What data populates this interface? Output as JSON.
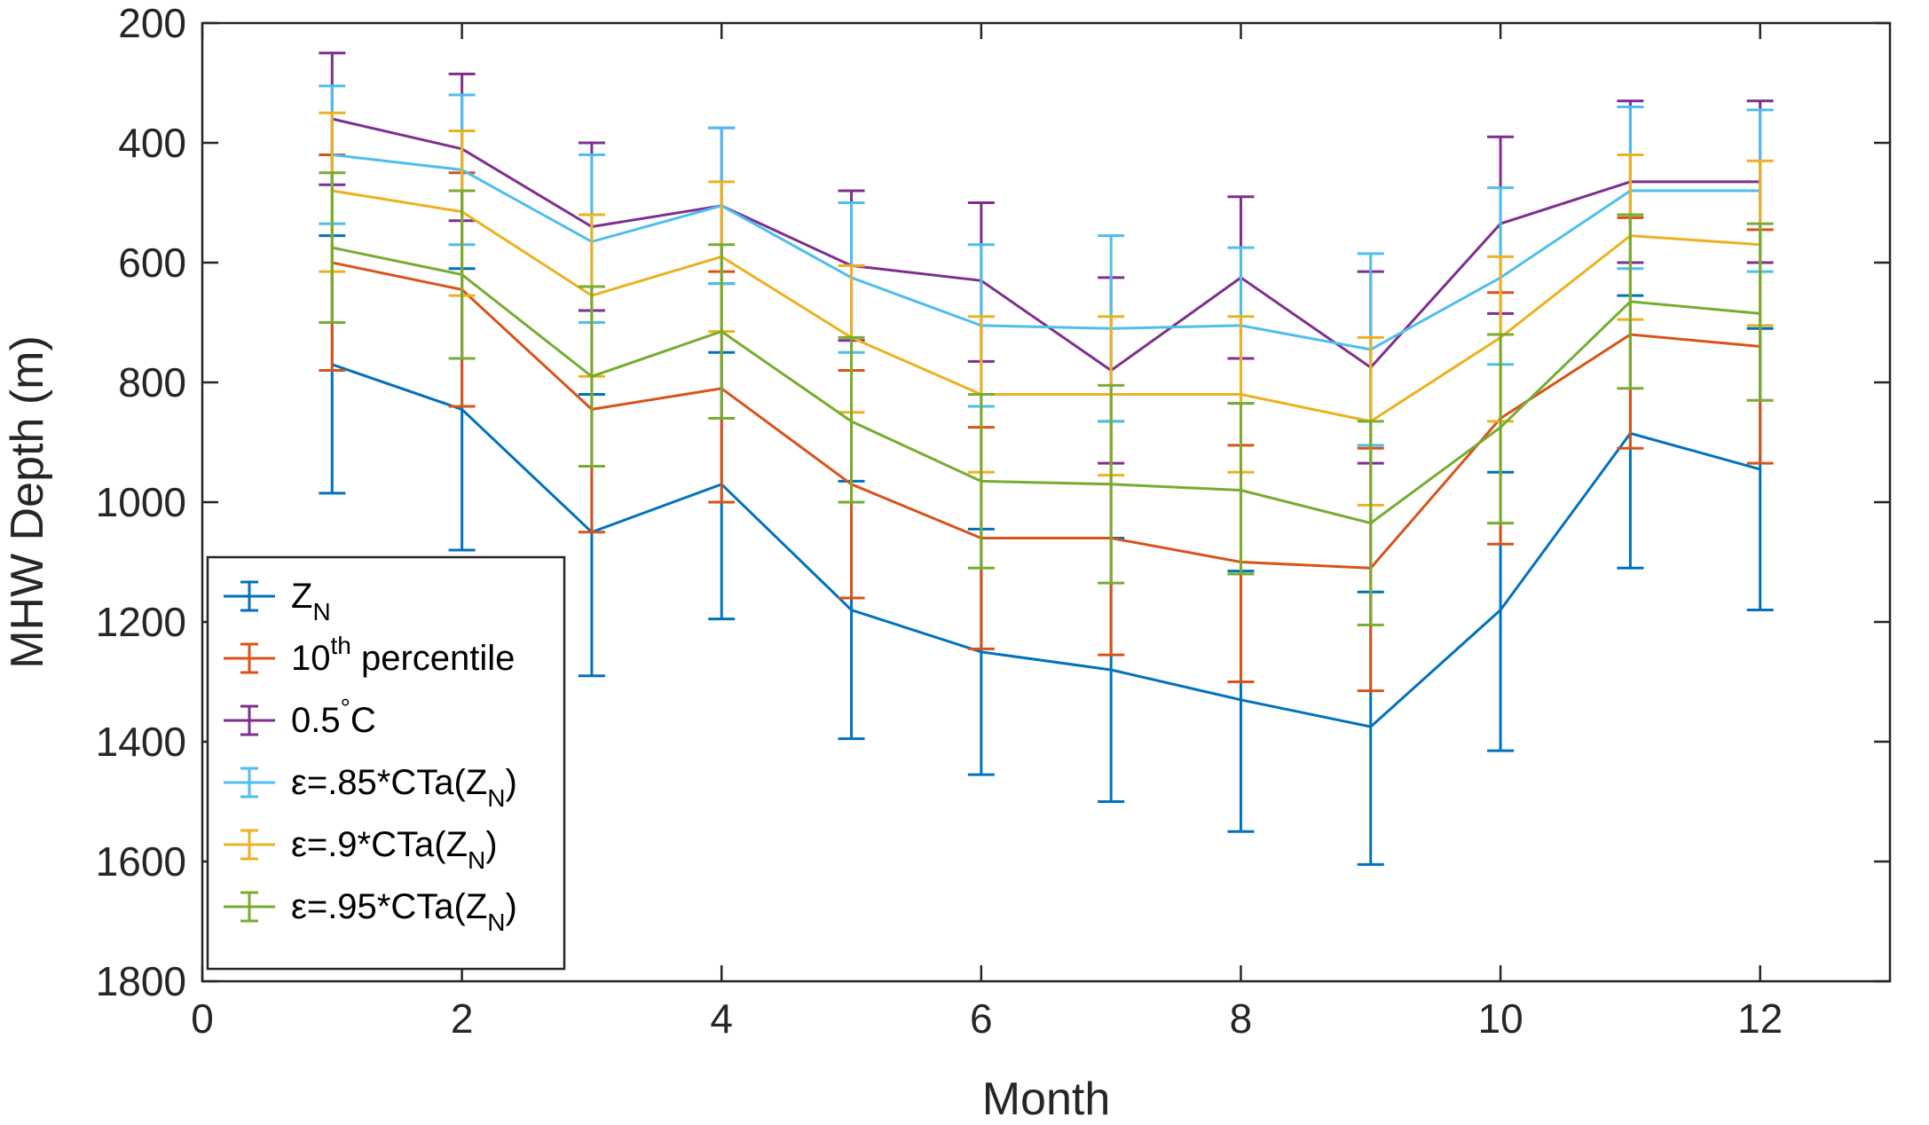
{
  "chart_data": {
    "type": "line",
    "title": "",
    "xlabel": "Month",
    "ylabel": "MHW Depth (m)",
    "xlim": [
      0,
      13
    ],
    "ylim": [
      200,
      1800
    ],
    "y_reversed": true,
    "x_ticks": [
      0,
      2,
      4,
      6,
      8,
      10,
      12
    ],
    "y_ticks": [
      200,
      400,
      600,
      800,
      1000,
      1200,
      1400,
      1600,
      1800
    ],
    "x_tick_labels": [
      "0",
      "2",
      "4",
      "6",
      "8",
      "10",
      "12"
    ],
    "y_tick_labels": [
      "200",
      "400",
      "600",
      "800",
      "1000",
      "1200",
      "1400",
      "1600",
      "1800"
    ],
    "legend_position": "bottom-left",
    "x": [
      1,
      2,
      3,
      4,
      5,
      6,
      7,
      8,
      9,
      10,
      11,
      12
    ],
    "series": [
      {
        "name": "Z_N",
        "legend": {
          "base": "Z",
          "sub": "N",
          "sup": "",
          "tail": ""
        },
        "color": "#0072BD",
        "values": [
          770,
          845,
          1050,
          970,
          1180,
          1250,
          1280,
          1330,
          1375,
          1180,
          885,
          945
        ],
        "lower": [
          555,
          610,
          820,
          750,
          965,
          1045,
          1060,
          1115,
          1150,
          950,
          655,
          710
        ],
        "upper": [
          985,
          1080,
          1290,
          1195,
          1395,
          1455,
          1500,
          1550,
          1605,
          1415,
          1110,
          1180
        ]
      },
      {
        "name": "10th percentile",
        "legend": {
          "base": "10",
          "sub": "",
          "sup": "th",
          "tail": " percentile"
        },
        "color": "#D95319",
        "values": [
          600,
          645,
          845,
          810,
          970,
          1060,
          1060,
          1100,
          1110,
          860,
          720,
          740
        ],
        "lower": [
          420,
          450,
          640,
          615,
          780,
          875,
          865,
          905,
          910,
          650,
          525,
          545
        ],
        "upper": [
          780,
          840,
          1050,
          1000,
          1160,
          1245,
          1255,
          1300,
          1315,
          1070,
          910,
          935
        ]
      },
      {
        "name": "0.5°C",
        "legend": {
          "base": "0.5",
          "sub": "",
          "sup": "°",
          "tail": "C"
        },
        "color": "#7E2F8E",
        "values": [
          360,
          410,
          540,
          505,
          605,
          630,
          780,
          625,
          775,
          535,
          465,
          465
        ],
        "lower": [
          250,
          285,
          400,
          375,
          480,
          500,
          625,
          490,
          615,
          390,
          330,
          330
        ],
        "upper": [
          470,
          530,
          680,
          635,
          730,
          765,
          935,
          760,
          935,
          685,
          600,
          600
        ]
      },
      {
        "name": "ε=.85*CTa(Z_N)",
        "legend": {
          "base": "ε=.85*CTa(Z",
          "sub": "N",
          "sup": "",
          "tail": ")"
        },
        "color": "#4DBEEE",
        "values": [
          420,
          445,
          565,
          505,
          625,
          705,
          710,
          705,
          745,
          625,
          480,
          480
        ],
        "lower": [
          305,
          320,
          420,
          375,
          500,
          570,
          555,
          575,
          585,
          475,
          340,
          345
        ],
        "upper": [
          535,
          570,
          700,
          635,
          750,
          840,
          865,
          835,
          905,
          770,
          610,
          615
        ]
      },
      {
        "name": "ε=.9*CTa(Z_N)",
        "legend": {
          "base": "ε=.9*CTa(Z",
          "sub": "N",
          "sup": "",
          "tail": ")"
        },
        "color": "#EDB120",
        "values": [
          480,
          515,
          655,
          590,
          725,
          820,
          820,
          820,
          865,
          725,
          555,
          570
        ],
        "lower": [
          350,
          380,
          520,
          465,
          605,
          690,
          690,
          690,
          725,
          590,
          420,
          430
        ],
        "upper": [
          615,
          655,
          790,
          715,
          850,
          950,
          955,
          950,
          1005,
          865,
          695,
          705
        ]
      },
      {
        "name": "ε=.95*CTa(Z_N)",
        "legend": {
          "base": "ε=.95*CTa(Z",
          "sub": "N",
          "sup": "",
          "tail": ")"
        },
        "color": "#77AC30",
        "values": [
          575,
          620,
          790,
          715,
          865,
          965,
          970,
          980,
          1035,
          875,
          665,
          685
        ],
        "lower": [
          450,
          480,
          640,
          570,
          725,
          820,
          805,
          835,
          865,
          720,
          520,
          535
        ],
        "upper": [
          700,
          760,
          940,
          860,
          1000,
          1110,
          1135,
          1120,
          1205,
          1035,
          810,
          830
        ]
      }
    ]
  }
}
